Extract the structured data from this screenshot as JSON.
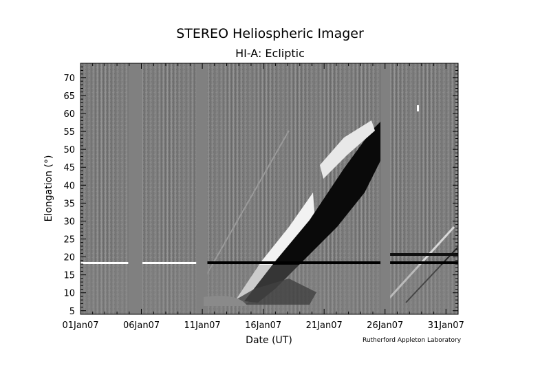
{
  "chart_data": {
    "type": "heatmap",
    "title": "STEREO Heliospheric Imager",
    "subtitle": "HI-A: Ecliptic",
    "xlabel": "Date (UT)",
    "ylabel": "Elongation (°)",
    "x_ticks": [
      "01Jan07",
      "06Jan07",
      "11Jan07",
      "16Jan07",
      "21Jan07",
      "26Jan07",
      "31Jan07"
    ],
    "y_ticks": [
      5,
      10,
      15,
      20,
      25,
      30,
      35,
      40,
      45,
      50,
      55,
      60,
      65,
      70
    ],
    "xlim": [
      "2007-01-01",
      "2007-02-01"
    ],
    "ylim": [
      4,
      74
    ],
    "colormap": "grayscale",
    "data_gaps": [
      {
        "start": "2007-01-04T22:00",
        "end": "2007-01-06T02:00"
      },
      {
        "start": "2007-01-10T12:00",
        "end": "2007-01-11T10:00"
      },
      {
        "start": "2007-01-25T15:00",
        "end": "2007-01-26T10:00"
      }
    ],
    "credit": "Rutherford Appleton Laboratory"
  }
}
